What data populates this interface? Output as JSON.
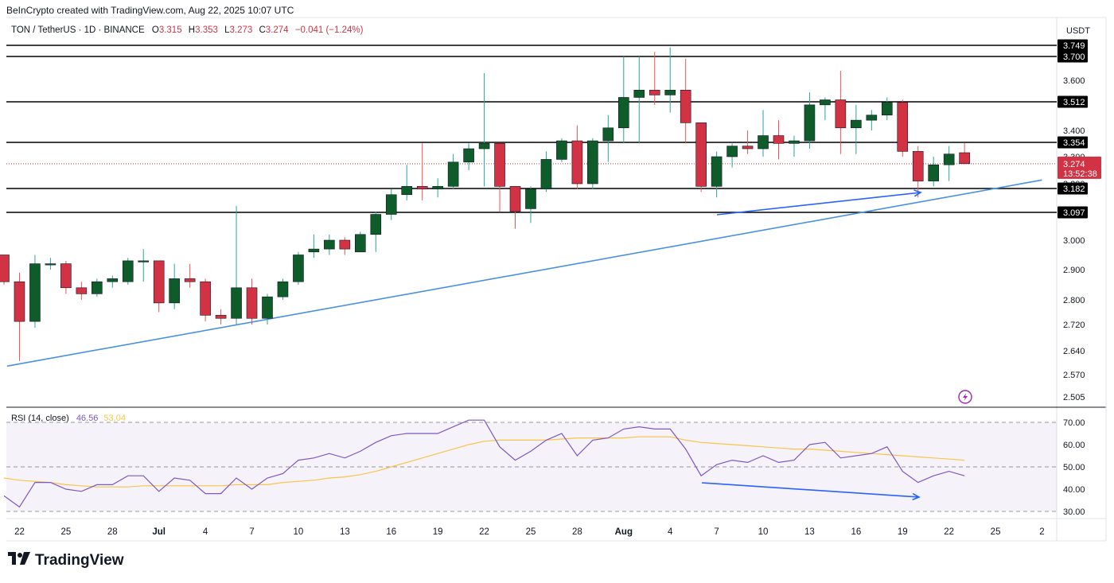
{
  "credit": "BeInCrypto created with TradingView.com, Aug 22, 2025 10:07 UTC",
  "header": {
    "symbol": "TON / TetherUS · 1D · BINANCE",
    "o_label": "O",
    "o_value": "3.315",
    "h_label": "H",
    "h_value": "3.353",
    "l_label": "L",
    "l_value": "3.273",
    "c_label": "C",
    "c_value": "3.274",
    "change": "−0.041 (−1.24%)"
  },
  "currency": "USDT",
  "footer_logo": "TradingView",
  "colors": {
    "up": "#0f5c2b",
    "down": "#d13345",
    "rsi": "#7e57c2",
    "rsi_ma": "#f7c548",
    "trendline": "#4a90e2",
    "arrow": "#2962ff"
  },
  "chart_data": [
    {
      "type": "candlestick",
      "title": "TON / TetherUS · 1D · BINANCE",
      "ylim": [
        2.505,
        3.77
      ],
      "y_ticks": [
        "3.600",
        "3.400",
        "3.300",
        "3.200",
        "3.000",
        "2.900",
        "2.800",
        "2.720",
        "2.640",
        "2.570",
        "2.505"
      ],
      "x_ticks": [
        "22",
        "25",
        "28",
        "Jul",
        "4",
        "7",
        "10",
        "13",
        "16",
        "19",
        "22",
        "25",
        "28",
        "Aug",
        "4",
        "7",
        "10",
        "13",
        "16",
        "19",
        "22",
        "25",
        "2"
      ],
      "horizontal_levels": [
        "3.749",
        "3.700",
        "3.512",
        "3.354",
        "3.182",
        "3.097"
      ],
      "last_price": {
        "value": "3.274",
        "countdown": "13:52:38"
      },
      "candles": [
        {
          "date": "Jun 21",
          "o": 2.95,
          "h": 2.95,
          "l": 2.85,
          "c": 2.86
        },
        {
          "date": "Jun 22",
          "o": 2.86,
          "h": 2.89,
          "l": 2.61,
          "c": 2.73
        },
        {
          "date": "Jun 23",
          "o": 2.73,
          "h": 2.95,
          "l": 2.71,
          "c": 2.92
        },
        {
          "date": "Jun 24",
          "o": 2.92,
          "h": 2.94,
          "l": 2.9,
          "c": 2.92
        },
        {
          "date": "Jun 25",
          "o": 2.92,
          "h": 2.93,
          "l": 2.82,
          "c": 2.84
        },
        {
          "date": "Jun 26",
          "o": 2.84,
          "h": 2.86,
          "l": 2.8,
          "c": 2.82
        },
        {
          "date": "Jun 27",
          "o": 2.82,
          "h": 2.87,
          "l": 2.81,
          "c": 2.86
        },
        {
          "date": "Jun 28",
          "o": 2.86,
          "h": 2.88,
          "l": 2.84,
          "c": 2.87
        },
        {
          "date": "Jun 29",
          "o": 2.86,
          "h": 2.94,
          "l": 2.85,
          "c": 2.93
        },
        {
          "date": "Jun 30",
          "o": 2.93,
          "h": 2.97,
          "l": 2.86,
          "c": 2.93
        },
        {
          "date": "Jul 1",
          "o": 2.93,
          "h": 2.93,
          "l": 2.76,
          "c": 2.79
        },
        {
          "date": "Jul 2",
          "o": 2.79,
          "h": 2.92,
          "l": 2.77,
          "c": 2.87
        },
        {
          "date": "Jul 3",
          "o": 2.87,
          "h": 2.92,
          "l": 2.84,
          "c": 2.86
        },
        {
          "date": "Jul 4",
          "o": 2.86,
          "h": 2.87,
          "l": 2.73,
          "c": 2.75
        },
        {
          "date": "Jul 5",
          "o": 2.75,
          "h": 2.77,
          "l": 2.72,
          "c": 2.74
        },
        {
          "date": "Jul 6",
          "o": 2.74,
          "h": 3.12,
          "l": 2.72,
          "c": 2.84
        },
        {
          "date": "Jul 7",
          "o": 2.84,
          "h": 2.87,
          "l": 2.72,
          "c": 2.74
        },
        {
          "date": "Jul 8",
          "o": 2.74,
          "h": 2.82,
          "l": 2.72,
          "c": 2.81
        },
        {
          "date": "Jul 9",
          "o": 2.81,
          "h": 2.87,
          "l": 2.8,
          "c": 2.86
        },
        {
          "date": "Jul 10",
          "o": 2.86,
          "h": 2.96,
          "l": 2.85,
          "c": 2.95
        },
        {
          "date": "Jul 11",
          "o": 2.96,
          "h": 3.02,
          "l": 2.94,
          "c": 2.97
        },
        {
          "date": "Jul 12",
          "o": 2.97,
          "h": 3.02,
          "l": 2.95,
          "c": 3.0
        },
        {
          "date": "Jul 13",
          "o": 3.0,
          "h": 3.01,
          "l": 2.95,
          "c": 2.97
        },
        {
          "date": "Jul 14",
          "o": 2.96,
          "h": 3.03,
          "l": 2.96,
          "c": 3.02
        },
        {
          "date": "Jul 15",
          "o": 3.02,
          "h": 3.1,
          "l": 2.96,
          "c": 3.09
        },
        {
          "date": "Jul 16",
          "o": 3.09,
          "h": 3.18,
          "l": 3.07,
          "c": 3.16
        },
        {
          "date": "Jul 17",
          "o": 3.16,
          "h": 3.27,
          "l": 3.14,
          "c": 3.19
        },
        {
          "date": "Jul 18",
          "o": 3.19,
          "h": 3.35,
          "l": 3.14,
          "c": 3.18
        },
        {
          "date": "Jul 19",
          "o": 3.18,
          "h": 3.22,
          "l": 3.15,
          "c": 3.19
        },
        {
          "date": "Jul 20",
          "o": 3.19,
          "h": 3.31,
          "l": 3.18,
          "c": 3.28
        },
        {
          "date": "Jul 21",
          "o": 3.28,
          "h": 3.35,
          "l": 3.25,
          "c": 3.33
        },
        {
          "date": "Jul 22",
          "o": 3.33,
          "h": 3.63,
          "l": 3.19,
          "c": 3.35
        },
        {
          "date": "Jul 23",
          "o": 3.35,
          "h": 3.35,
          "l": 3.1,
          "c": 3.19
        },
        {
          "date": "Jul 24",
          "o": 3.19,
          "h": 3.19,
          "l": 3.04,
          "c": 3.1
        },
        {
          "date": "Jul 25",
          "o": 3.11,
          "h": 3.19,
          "l": 3.06,
          "c": 3.18
        },
        {
          "date": "Jul 26",
          "o": 3.18,
          "h": 3.32,
          "l": 3.17,
          "c": 3.29
        },
        {
          "date": "Jul 27",
          "o": 3.29,
          "h": 3.37,
          "l": 3.28,
          "c": 3.36
        },
        {
          "date": "Jul 28",
          "o": 3.36,
          "h": 3.42,
          "l": 3.18,
          "c": 3.2
        },
        {
          "date": "Jul 29",
          "o": 3.2,
          "h": 3.37,
          "l": 3.18,
          "c": 3.36
        },
        {
          "date": "Jul 30",
          "o": 3.36,
          "h": 3.46,
          "l": 3.28,
          "c": 3.41
        },
        {
          "date": "Jul 31",
          "o": 3.41,
          "h": 3.7,
          "l": 3.35,
          "c": 3.53
        },
        {
          "date": "Aug 1",
          "o": 3.53,
          "h": 3.7,
          "l": 3.35,
          "c": 3.56
        },
        {
          "date": "Aug 2",
          "o": 3.56,
          "h": 3.72,
          "l": 3.5,
          "c": 3.54
        },
        {
          "date": "Aug 3",
          "o": 3.54,
          "h": 3.74,
          "l": 3.47,
          "c": 3.56
        },
        {
          "date": "Aug 4",
          "o": 3.56,
          "h": 3.69,
          "l": 3.35,
          "c": 3.43
        },
        {
          "date": "Aug 5",
          "o": 3.43,
          "h": 3.43,
          "l": 3.17,
          "c": 3.19
        },
        {
          "date": "Aug 6",
          "o": 3.19,
          "h": 3.32,
          "l": 3.15,
          "c": 3.3
        },
        {
          "date": "Aug 7",
          "o": 3.3,
          "h": 3.35,
          "l": 3.26,
          "c": 3.34
        },
        {
          "date": "Aug 8",
          "o": 3.34,
          "h": 3.4,
          "l": 3.31,
          "c": 3.33
        },
        {
          "date": "Aug 9",
          "o": 3.33,
          "h": 3.48,
          "l": 3.3,
          "c": 3.38
        },
        {
          "date": "Aug 10",
          "o": 3.38,
          "h": 3.44,
          "l": 3.29,
          "c": 3.35
        },
        {
          "date": "Aug 11",
          "o": 3.35,
          "h": 3.38,
          "l": 3.3,
          "c": 3.36
        },
        {
          "date": "Aug 12",
          "o": 3.36,
          "h": 3.55,
          "l": 3.33,
          "c": 3.5
        },
        {
          "date": "Aug 13",
          "o": 3.5,
          "h": 3.53,
          "l": 3.44,
          "c": 3.52
        },
        {
          "date": "Aug 14",
          "o": 3.52,
          "h": 3.64,
          "l": 3.31,
          "c": 3.41
        },
        {
          "date": "Aug 15",
          "o": 3.41,
          "h": 3.5,
          "l": 3.31,
          "c": 3.44
        },
        {
          "date": "Aug 16",
          "o": 3.44,
          "h": 3.48,
          "l": 3.4,
          "c": 3.46
        },
        {
          "date": "Aug 17",
          "o": 3.46,
          "h": 3.53,
          "l": 3.44,
          "c": 3.51
        },
        {
          "date": "Aug 18",
          "o": 3.51,
          "h": 3.52,
          "l": 3.3,
          "c": 3.32
        },
        {
          "date": "Aug 19",
          "o": 3.32,
          "h": 3.34,
          "l": 3.15,
          "c": 3.21
        },
        {
          "date": "Aug 20",
          "o": 3.21,
          "h": 3.3,
          "l": 3.19,
          "c": 3.27
        },
        {
          "date": "Aug 21",
          "o": 3.27,
          "h": 3.34,
          "l": 3.21,
          "c": 3.31
        },
        {
          "date": "Aug 22",
          "o": 3.315,
          "h": 3.353,
          "l": 3.273,
          "c": 3.274
        }
      ]
    },
    {
      "type": "line",
      "title": "RSI (14, close)",
      "rsi_value": "46.56",
      "ma_value": "53.04",
      "ylim": [
        27,
        73
      ],
      "y_ticks": [
        "70.00",
        "60.00",
        "50.00",
        "40.00",
        "30.00"
      ],
      "bands": [
        70,
        50,
        30
      ],
      "series": [
        {
          "values": [
            37,
            32,
            43,
            43,
            40,
            39,
            42,
            42,
            46,
            46,
            39,
            45,
            44,
            38,
            38,
            45,
            40,
            45,
            47,
            53,
            54,
            56,
            54,
            57,
            61,
            64,
            65,
            65,
            65,
            68,
            71,
            71,
            59,
            53,
            57,
            62,
            65,
            55,
            62,
            63,
            67,
            68,
            67,
            67,
            58,
            46,
            51,
            53,
            52,
            55,
            52,
            53,
            60,
            61,
            54,
            55,
            56,
            59,
            48,
            43,
            46,
            48,
            46
          ]
        },
        {
          "values": [
            45,
            44,
            43.5,
            43,
            42,
            41.5,
            41,
            41,
            41,
            41.5,
            41.5,
            41.5,
            41.5,
            41.5,
            41.5,
            42,
            42,
            42,
            43,
            43.5,
            44,
            45,
            45.5,
            46.5,
            48,
            50,
            52,
            54,
            56,
            58,
            60,
            61.5,
            62,
            62,
            62,
            62,
            62.5,
            63,
            63,
            63,
            63,
            63.5,
            63.5,
            63.5,
            62,
            61,
            60.5,
            60,
            59.5,
            59,
            58.5,
            58,
            58,
            57.5,
            57,
            56.5,
            56,
            55.5,
            55,
            54.5,
            54,
            53.5,
            53
          ]
        }
      ],
      "annotation": "bearish divergence arrows: price higher low (Aug 6 → Aug 19) vs RSI lower low"
    }
  ]
}
